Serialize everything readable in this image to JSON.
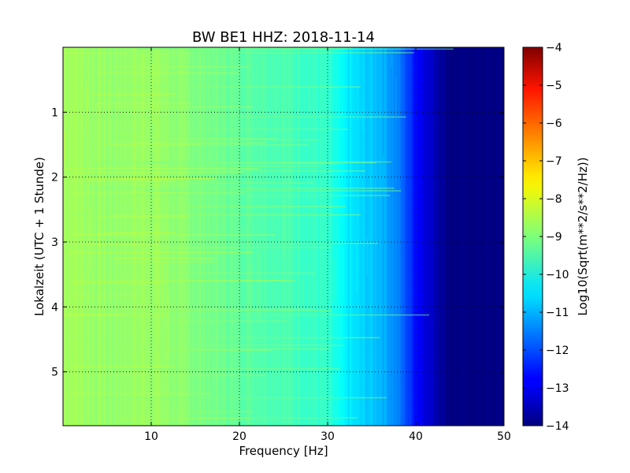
{
  "chart_data": {
    "type": "heatmap",
    "title": "BW BE1 HHZ: 2018-11-14",
    "xlabel": "Frequency [Hz]",
    "ylabel": "Lokalzeit (UTC + 1 Stunde)",
    "xlim": [
      0,
      50
    ],
    "ylim": [
      0,
      5.83
    ],
    "y_inverted": true,
    "x_ticks": [
      10,
      20,
      30,
      40,
      50
    ],
    "x_tick_labels": [
      "10",
      "20",
      "30",
      "40",
      "50"
    ],
    "y_ticks": [
      1,
      2,
      3,
      4,
      5
    ],
    "y_tick_labels": [
      "1",
      "2",
      "3",
      "4",
      "5"
    ],
    "grid": true,
    "colormap": "jet",
    "colorbar": {
      "label": "Log10(Sqrt(m**2/s**2/Hz))",
      "range": [
        -14,
        -4
      ],
      "ticks": [
        -4,
        -5,
        -6,
        -7,
        -8,
        -9,
        -10,
        -11,
        -12,
        -13,
        -14
      ],
      "tick_labels": [
        "−4",
        "−5",
        "−6",
        "−7",
        "−8",
        "−9",
        "−10",
        "−11",
        "−12",
        "−13",
        "−14"
      ]
    },
    "spectral_profile": {
      "frequency_hz": [
        0,
        5,
        10,
        15,
        20,
        25,
        30,
        32,
        34,
        36,
        38,
        40,
        42,
        44,
        50
      ],
      "log10_amplitude": [
        -8.6,
        -8.8,
        -8.7,
        -9.0,
        -9.3,
        -9.5,
        -9.8,
        -10.4,
        -10.7,
        -10.9,
        -11.5,
        -12.6,
        -13.4,
        -14.0,
        -14.0
      ]
    },
    "notes": "Spectrogram: yellow-green low frequencies, cyan band ~32-38 Hz, blue to dark blue above ~40 Hz; vertical and horizontal streaks."
  }
}
